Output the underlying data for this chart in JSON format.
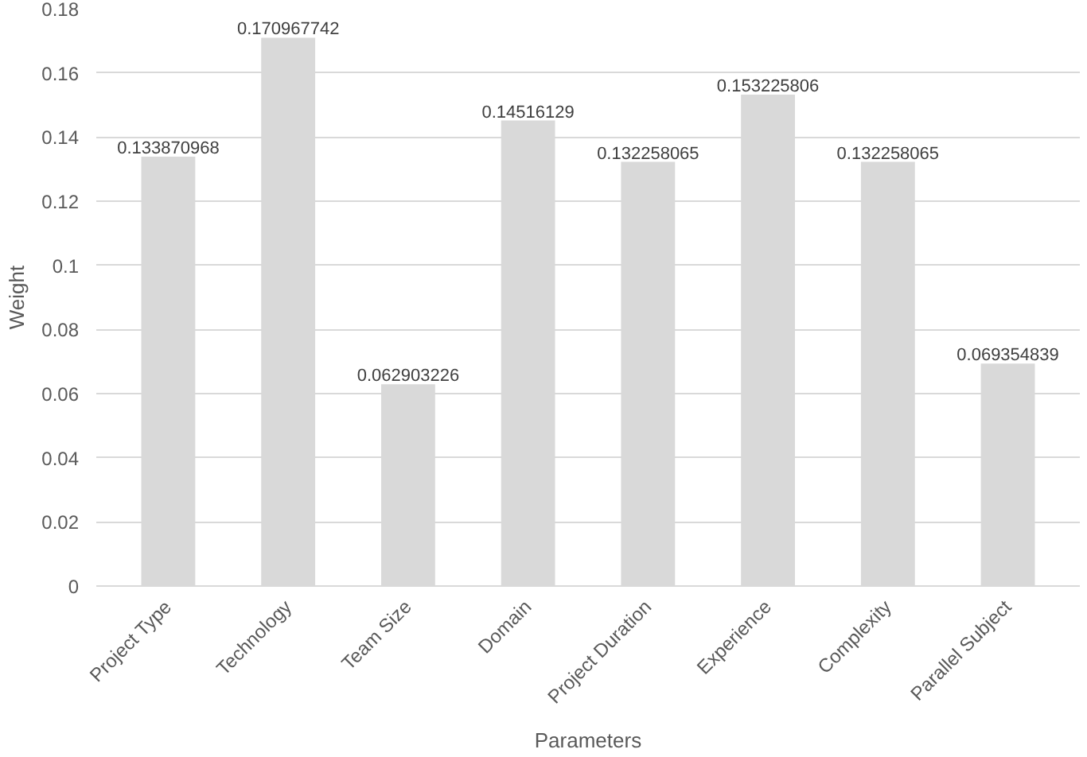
{
  "chart_data": {
    "type": "bar",
    "xlabel": "Parameters",
    "ylabel": "Weight",
    "categories": [
      "Project Type",
      "Technology",
      "Team Size",
      "Domain",
      "Project Duration",
      "Experience",
      "Complexity",
      "Parallel Subject"
    ],
    "values": [
      0.133870968,
      0.170967742,
      0.062903226,
      0.14516129,
      0.132258065,
      0.153225806,
      0.132258065,
      0.069354839
    ],
    "color": "#d9d9d9",
    "ylim": [
      0,
      0.18
    ],
    "yticks": [
      0,
      0.02,
      0.04,
      0.06,
      0.08,
      0.1,
      0.12,
      0.14,
      0.16,
      0.18
    ],
    "grid": "y",
    "data_labels": true
  }
}
